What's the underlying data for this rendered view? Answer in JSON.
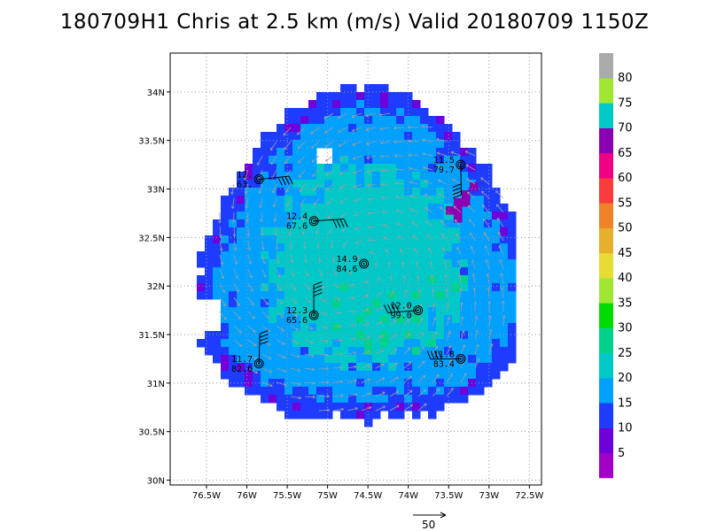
{
  "title": "180709H1 Chris at 2.5 km (m/s) Valid 20180709 1150Z",
  "chart_data": {
    "type": "heatmap",
    "title": "180709H1 Chris at 2.5 km (m/s) Valid 20180709 1150Z",
    "units": "m/s",
    "xlim": [
      -76.95,
      -72.35
    ],
    "ylim": [
      29.95,
      34.4
    ],
    "x_ticks": [
      {
        "value": -76.5,
        "label": "76.5W"
      },
      {
        "value": -76.0,
        "label": "76W"
      },
      {
        "value": -75.5,
        "label": "75.5W"
      },
      {
        "value": -75.0,
        "label": "75W"
      },
      {
        "value": -74.5,
        "label": "74.5W"
      },
      {
        "value": -74.0,
        "label": "74W"
      },
      {
        "value": -73.5,
        "label": "73.5W"
      },
      {
        "value": -73.0,
        "label": "73W"
      },
      {
        "value": -72.5,
        "label": "72.5W"
      }
    ],
    "y_ticks": [
      {
        "value": 30.0,
        "label": "30N"
      },
      {
        "value": 30.5,
        "label": "30.5N"
      },
      {
        "value": 31.0,
        "label": "31N"
      },
      {
        "value": 31.5,
        "label": "31.5N"
      },
      {
        "value": 32.0,
        "label": "32N"
      },
      {
        "value": 32.5,
        "label": "32.5N"
      },
      {
        "value": 33.0,
        "label": "33N"
      },
      {
        "value": 33.5,
        "label": "33.5N"
      },
      {
        "value": 34.0,
        "label": "34N"
      }
    ],
    "grid": true,
    "storm_center": {
      "lon": -74.55,
      "lat": 32.22
    },
    "colorbar": {
      "labels": [
        5,
        10,
        15,
        20,
        25,
        30,
        35,
        40,
        45,
        50,
        55,
        60,
        65,
        70,
        75,
        80
      ],
      "colors": [
        "#a000c8",
        "#6e00dc",
        "#1e3cff",
        "#00a0ff",
        "#00c8c8",
        "#00d28c",
        "#00dc00",
        "#a0e632",
        "#e6dc32",
        "#e6af2d",
        "#f08228",
        "#fa3c3c",
        "#f00082",
        "#8c00b4",
        "#00c8c8",
        "#a0e632",
        "#aaaaaa"
      ]
    },
    "stations": [
      {
        "lon": -75.85,
        "lat": 33.1,
        "label": [
          "12.",
          "63."
        ]
      },
      {
        "lon": -75.17,
        "lat": 32.67,
        "label": [
          "12.4",
          "67.6"
        ]
      },
      {
        "lon": -74.55,
        "lat": 32.23,
        "label": [
          "14.9",
          "84.6"
        ]
      },
      {
        "lon": -73.35,
        "lat": 33.25,
        "label": [
          "11.5",
          "79.7"
        ]
      },
      {
        "lon": -75.17,
        "lat": 31.7,
        "label": [
          "12.3",
          "65.6"
        ]
      },
      {
        "lon": -73.88,
        "lat": 31.75,
        "label": [
          "12.0",
          "99.0"
        ]
      },
      {
        "lon": -75.85,
        "lat": 31.2,
        "label": [
          "11.7",
          "82.6"
        ]
      },
      {
        "lon": -73.35,
        "lat": 31.25,
        "label": [
          "11.8",
          "83.4"
        ]
      }
    ],
    "vector_key": {
      "value": "50"
    }
  }
}
